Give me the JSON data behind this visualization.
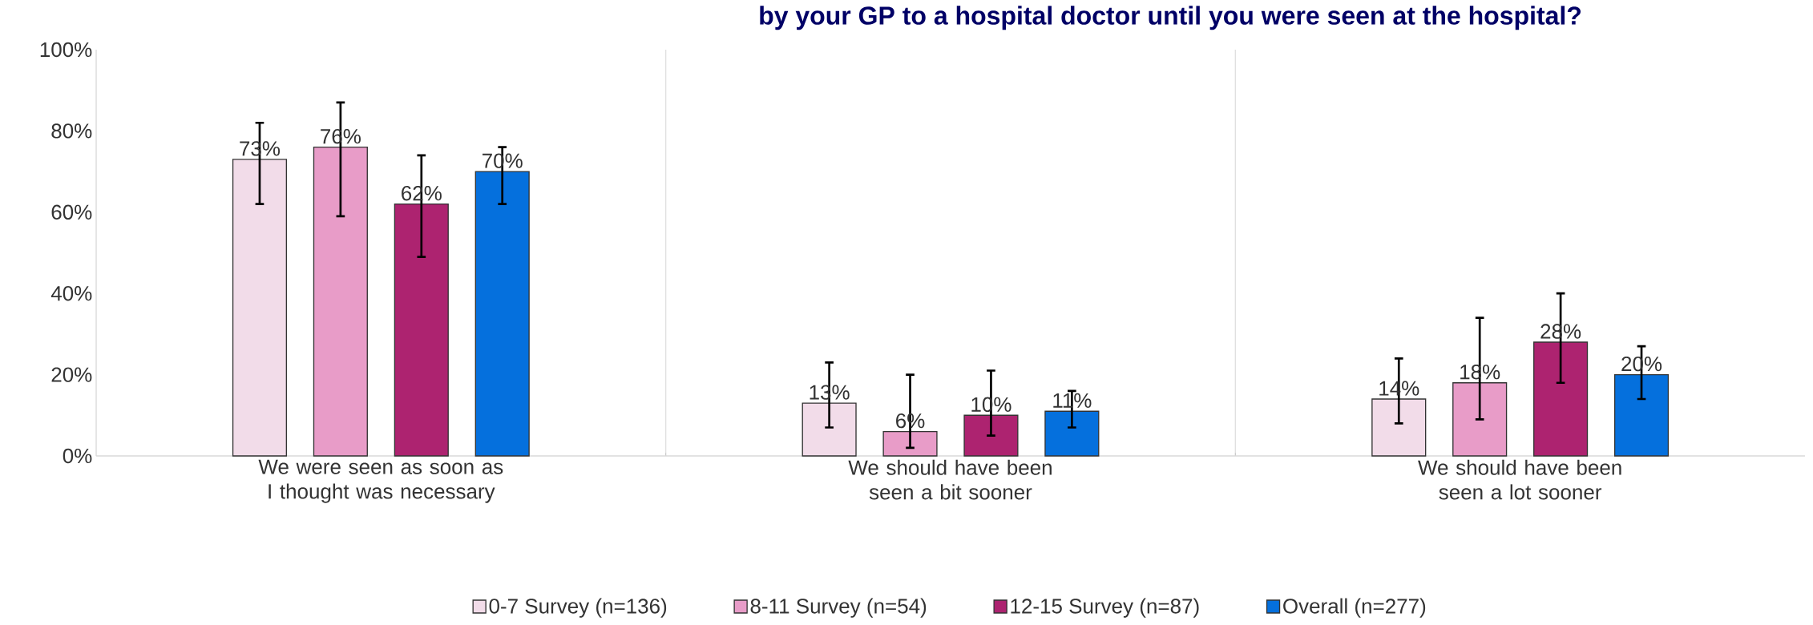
{
  "chart_data": {
    "type": "bar",
    "title": "by your GP to a hospital doctor until you were seen at the hospital?",
    "categories": [
      "We were seen as soon as I thought was necessary",
      "We should have been seen a bit sooner",
      "We should have been seen a lot sooner"
    ],
    "series": [
      {
        "name": "0-7 Survey (n=136)",
        "color": "#f2dce9",
        "values": [
          73,
          13,
          14
        ],
        "value_labels": [
          "73%",
          "13%",
          "14%"
        ],
        "errors": [
          [
            62,
            82
          ],
          [
            7,
            23
          ],
          [
            8,
            24
          ]
        ]
      },
      {
        "name": "8-11 Survey (n=54)",
        "color": "#e89cc8",
        "values": [
          76,
          6,
          18
        ],
        "value_labels": [
          "76%",
          "6%",
          "18%"
        ],
        "errors": [
          [
            59,
            87
          ],
          [
            2,
            20
          ],
          [
            9,
            34
          ]
        ]
      },
      {
        "name": "12-15 Survey (n=87)",
        "color": "#ad2370",
        "values": [
          62,
          10,
          28
        ],
        "value_labels": [
          "62%",
          "10%",
          "28%"
        ],
        "errors": [
          [
            49,
            74
          ],
          [
            5,
            21
          ],
          [
            18,
            40
          ]
        ]
      },
      {
        "name": "Overall (n=277)",
        "color": "#0570dd",
        "values": [
          70,
          11,
          20
        ],
        "value_labels": [
          "70%",
          "11%",
          "20%"
        ],
        "errors": [
          [
            62,
            76
          ],
          [
            7,
            16
          ],
          [
            14,
            27
          ]
        ]
      }
    ],
    "ylim": [
      0,
      100
    ],
    "yticks": [
      {
        "value": 0,
        "label": "0%"
      },
      {
        "value": 20,
        "label": "20%"
      },
      {
        "value": 40,
        "label": "40%"
      },
      {
        "value": 60,
        "label": "60%"
      },
      {
        "value": 80,
        "label": "80%"
      },
      {
        "value": 100,
        "label": "100%"
      }
    ],
    "grid": "x",
    "legend": "bottom"
  }
}
